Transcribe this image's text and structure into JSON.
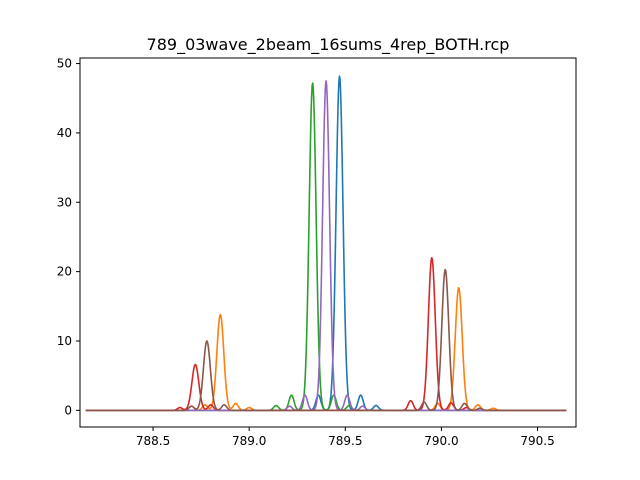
{
  "chart_data": {
    "type": "line",
    "title": "789_03wave_2beam_16sums_4rep_BOTH.rcp",
    "xlabel": "",
    "ylabel": "",
    "xlim": [
      788.12,
      790.7
    ],
    "ylim": [
      -2.4,
      50.8
    ],
    "x_ticks": [
      788.5,
      789.0,
      789.5,
      790.0,
      790.5
    ],
    "x_tick_labels": [
      "788.5",
      "789.0",
      "789.5",
      "790.0",
      "790.5"
    ],
    "y_ticks": [
      0,
      10,
      20,
      30,
      40,
      50
    ],
    "y_tick_labels": [
      "0",
      "10",
      "20",
      "30",
      "40",
      "50"
    ],
    "grid": false,
    "legend": "none",
    "x_range": [
      788.15,
      790.65
    ],
    "series": [
      {
        "color": "#1f77b4",
        "peaks": [
          [
            789.47,
            48.2
          ]
        ],
        "sidelobes": [
          [
            789.36,
            2.2
          ],
          [
            789.58,
            2.2
          ],
          [
            789.66,
            0.7
          ]
        ]
      },
      {
        "color": "#ff7f0e",
        "peaks": [
          [
            788.85,
            13.8
          ],
          [
            790.09,
            17.7
          ]
        ],
        "sidelobes": [
          [
            788.77,
            0.8
          ],
          [
            788.93,
            1.0
          ],
          [
            789.0,
            0.4
          ],
          [
            789.98,
            1.0
          ],
          [
            790.19,
            0.8
          ],
          [
            790.27,
            0.3
          ]
        ]
      },
      {
        "color": "#2ca02c",
        "peaks": [
          [
            789.33,
            47.2
          ]
        ],
        "sidelobes": [
          [
            789.22,
            2.2
          ],
          [
            789.44,
            2.2
          ],
          [
            789.14,
            0.7
          ],
          [
            789.52,
            0.7
          ]
        ]
      },
      {
        "color": "#d62728",
        "peaks": [
          [
            788.72,
            6.6
          ],
          [
            789.95,
            22.0
          ]
        ],
        "sidelobes": [
          [
            788.8,
            0.8
          ],
          [
            788.64,
            0.4
          ],
          [
            789.84,
            1.4
          ],
          [
            790.05,
            1.1
          ],
          [
            790.13,
            0.4
          ]
        ]
      },
      {
        "color": "#9467bd",
        "peaks": [
          [
            789.4,
            47.5
          ]
        ],
        "sidelobes": [
          [
            789.29,
            2.2
          ],
          [
            789.51,
            2.2
          ],
          [
            789.21,
            0.6
          ],
          [
            789.59,
            0.6
          ]
        ]
      },
      {
        "color": "#8c564b",
        "peaks": [
          [
            788.78,
            10.0
          ],
          [
            790.02,
            20.3
          ]
        ],
        "sidelobes": [
          [
            788.7,
            0.6
          ],
          [
            788.87,
            0.8
          ],
          [
            789.91,
            1.2
          ],
          [
            790.12,
            1.0
          ],
          [
            790.2,
            0.3
          ]
        ]
      }
    ]
  }
}
